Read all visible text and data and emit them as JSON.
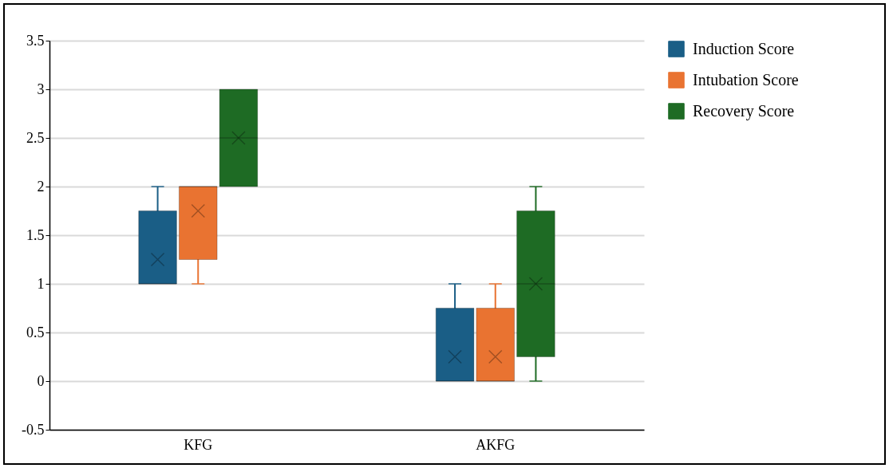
{
  "chart_data": {
    "type": "box",
    "categories": [
      "KFG",
      "AKFG"
    ],
    "series": [
      {
        "name": "Induction Score",
        "color": "#1a5e86",
        "boxes": [
          {
            "low": 1,
            "q1": 1,
            "median": 1,
            "q3": 1.75,
            "high": 2,
            "mean": 1.25
          },
          {
            "low": 0,
            "q1": 0,
            "median": 0,
            "q3": 0.75,
            "high": 1,
            "mean": 0.25
          }
        ]
      },
      {
        "name": "Intubation Score",
        "color": "#e97331",
        "boxes": [
          {
            "low": 1,
            "q1": 1.25,
            "median": 2,
            "q3": 2,
            "high": 2,
            "mean": 1.75
          },
          {
            "low": 0,
            "q1": 0,
            "median": 0,
            "q3": 0.75,
            "high": 1,
            "mean": 0.25
          }
        ]
      },
      {
        "name": "Recovery Score",
        "color": "#1e6b24",
        "boxes": [
          {
            "low": 2,
            "q1": 2,
            "median": 2.5,
            "q3": 3,
            "high": 3,
            "mean": 2.5
          },
          {
            "low": 0,
            "q1": 0.25,
            "median": 1,
            "q3": 1.75,
            "high": 2,
            "mean": 1
          }
        ]
      }
    ],
    "ylim": [
      -0.5,
      3.5
    ],
    "yticks": [
      -0.5,
      0,
      0.5,
      1,
      1.5,
      2,
      2.5,
      3,
      3.5
    ],
    "grid": "y",
    "legend": "right",
    "marker": "cross"
  }
}
